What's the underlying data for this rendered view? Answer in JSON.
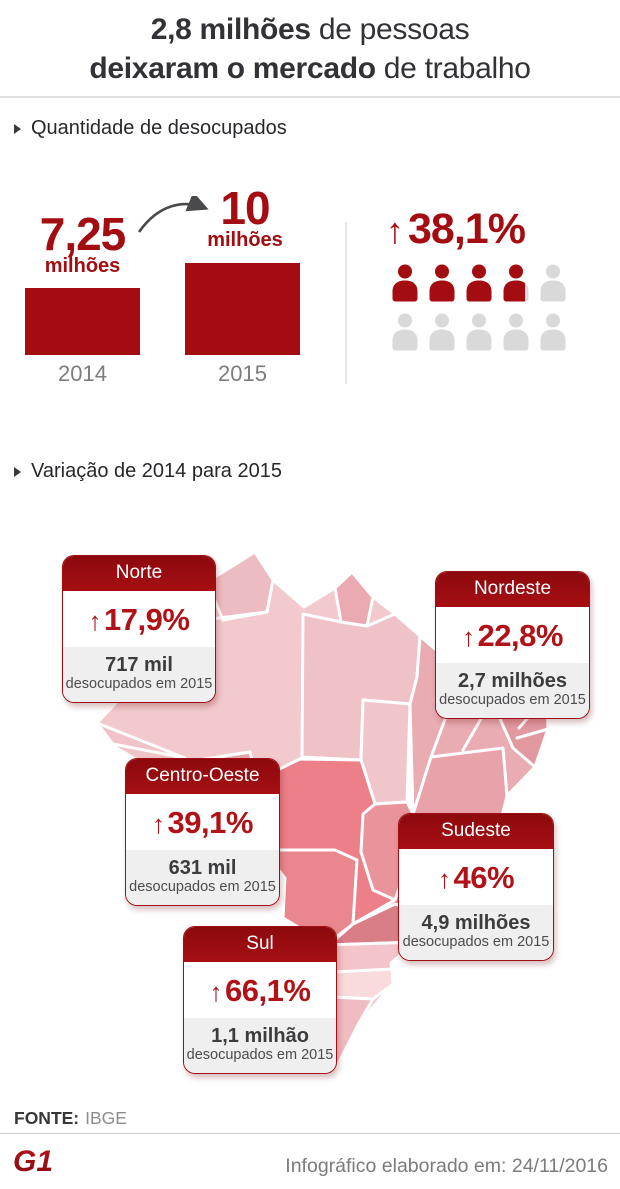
{
  "title": {
    "line1_bold": "2,8 milhões",
    "line1_rest": " de pessoas",
    "line2_bold": "deixaram o mercado",
    "line2_rest": " de trabalho"
  },
  "sections": {
    "unemployed": "Quantidade de desocupados",
    "variation": "Variação de 2014 para 2015"
  },
  "chart_data": [
    {
      "type": "bar",
      "title": "Quantidade de desocupados",
      "categories": [
        "2014",
        "2015"
      ],
      "values": [
        7.25,
        10
      ],
      "value_labels": [
        "7,25",
        "10"
      ],
      "unit": "milhões",
      "ylim": [
        0,
        10
      ],
      "bar_color": "#a30c10",
      "grid": false,
      "legend": false
    },
    {
      "type": "pictogram",
      "arrow": "↑",
      "label": "38,1%",
      "value_pct": 38.1,
      "total_icons": 10,
      "filled_icons": 3.8,
      "filled_color": "#a30c10",
      "empty_color": "#d9d9d9"
    },
    {
      "type": "map-callouts",
      "title": "Variação de 2014 para 2015",
      "regions": [
        {
          "name": "Norte",
          "arrow": "↑",
          "percent_label": "17,9%",
          "variation_pct": 17.9,
          "amount_label": "717 mil",
          "caption": "desocupados em 2015"
        },
        {
          "name": "Nordeste",
          "arrow": "↑",
          "percent_label": "22,8%",
          "variation_pct": 22.8,
          "amount_label": "2,7 milhões",
          "caption": "desocupados em 2015"
        },
        {
          "name": "Centro-Oeste",
          "arrow": "↑",
          "percent_label": "39,1%",
          "variation_pct": 39.1,
          "amount_label": "631 mil",
          "caption": "desocupados em 2015"
        },
        {
          "name": "Sudeste",
          "arrow": "↑",
          "percent_label": "46%",
          "variation_pct": 46,
          "amount_label": "4,9 milhões",
          "caption": "desocupados em 2015"
        },
        {
          "name": "Sul",
          "arrow": "↑",
          "percent_label": "66,1%",
          "variation_pct": 66.1,
          "amount_label": "1,1 milhão",
          "caption": "desocupados em 2015"
        }
      ]
    }
  ],
  "source": {
    "label": "FONTE:",
    "value": "IBGE"
  },
  "footer": {
    "logo": "G1",
    "credit": "Infográfico elaborado em: 24/11/2016"
  },
  "colors": {
    "accent_red": "#a30c10",
    "percent_red": "#b01217",
    "header_red_top": "#8c090d",
    "header_red_bottom": "#a60f14",
    "empty_gray": "#d9d9d9",
    "map_light_pink": "#f2c9cd",
    "map_medium_pink": "#e9acb3",
    "map_strong_salmon": "#ec7f87",
    "map_dark_rose": "#dd838b",
    "map_pale_pink": "#f3c4c9"
  }
}
